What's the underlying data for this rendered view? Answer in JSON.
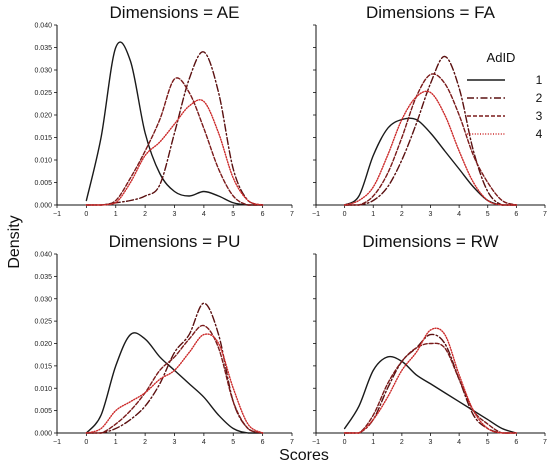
{
  "chart_data": {
    "type": "line",
    "subtype": "kde-density-facets",
    "xlabel": "Scores",
    "ylabel": "Density",
    "xlim": [
      -1,
      7
    ],
    "ylim": [
      0,
      0.04
    ],
    "x_ticks": [
      -1,
      0,
      1,
      2,
      3,
      4,
      5,
      6,
      7
    ],
    "x_tick_labels": [
      "−1",
      "0",
      "1",
      "2",
      "3",
      "4",
      "5",
      "6",
      "7"
    ],
    "y_ticks": [
      0,
      0.005,
      0.01,
      0.015,
      0.02,
      0.025,
      0.03,
      0.035,
      0.04
    ],
    "y_tick_labels": [
      "0.000",
      "0.005",
      "0.010",
      "0.015",
      "0.020",
      "0.025",
      "0.030",
      "0.035",
      "0.040"
    ],
    "grid": false,
    "legend": {
      "title": "AdID",
      "placement": "top-right",
      "entries": [
        {
          "label": "1",
          "color": "#1a1a1a",
          "dash": "solid"
        },
        {
          "label": "2",
          "color": "#5a1010",
          "dash": "dashdot"
        },
        {
          "label": "3",
          "color": "#7a1a1a",
          "dash": "dashed"
        },
        {
          "label": "4",
          "color": "#cc2a2a",
          "dash": "dotted"
        }
      ]
    },
    "x": [
      0,
      0.5,
      1,
      1.5,
      2,
      2.5,
      3,
      3.5,
      4,
      4.5,
      5,
      5.5,
      6
    ],
    "panels": [
      {
        "title": "Dimensions = AE",
        "series": [
          {
            "name": "1",
            "values": [
              0.001,
              0.015,
              0.035,
              0.032,
              0.016,
              0.007,
              0.003,
              0.002,
              0.003,
              0.002,
              0.0005,
              0,
              0
            ]
          },
          {
            "name": "2",
            "values": [
              0,
              0,
              0.0005,
              0.001,
              0.002,
              0.0045,
              0.016,
              0.028,
              0.034,
              0.025,
              0.008,
              0.001,
              0
            ]
          },
          {
            "name": "3",
            "values": [
              0,
              0,
              0.001,
              0.006,
              0.012,
              0.019,
              0.028,
              0.025,
              0.017,
              0.008,
              0.002,
              0,
              0
            ]
          },
          {
            "name": "4",
            "values": [
              0,
              0,
              0.0005,
              0.005,
              0.011,
              0.014,
              0.018,
              0.022,
              0.023,
              0.016,
              0.006,
              0.001,
              0
            ]
          }
        ]
      },
      {
        "title": "Dimensions = FA",
        "series": [
          {
            "name": "1",
            "values": [
              0,
              0.002,
              0.011,
              0.017,
              0.019,
              0.019,
              0.016,
              0.012,
              0.008,
              0.004,
              0.001,
              0,
              0
            ]
          },
          {
            "name": "2",
            "values": [
              0,
              0,
              0.001,
              0.004,
              0.01,
              0.018,
              0.027,
              0.033,
              0.026,
              0.012,
              0.003,
              0,
              0
            ]
          },
          {
            "name": "3",
            "values": [
              0,
              0,
              0.002,
              0.007,
              0.015,
              0.024,
              0.029,
              0.027,
              0.02,
              0.011,
              0.005,
              0.001,
              0
            ]
          },
          {
            "name": "4",
            "values": [
              0,
              0.001,
              0.004,
              0.011,
              0.019,
              0.024,
              0.025,
              0.02,
              0.012,
              0.005,
              0.001,
              0,
              0
            ]
          }
        ]
      },
      {
        "title": "Dimensions = PU",
        "series": [
          {
            "name": "1",
            "values": [
              0,
              0.004,
              0.015,
              0.022,
              0.021,
              0.017,
              0.014,
              0.011,
              0.008,
              0.004,
              0.001,
              0,
              0
            ]
          },
          {
            "name": "2",
            "values": [
              0,
              0,
              0.001,
              0.003,
              0.006,
              0.011,
              0.018,
              0.022,
              0.029,
              0.022,
              0.007,
              0.001,
              0
            ]
          },
          {
            "name": "3",
            "values": [
              0,
              0,
              0.002,
              0.005,
              0.009,
              0.014,
              0.017,
              0.021,
              0.024,
              0.019,
              0.007,
              0.001,
              0
            ]
          },
          {
            "name": "4",
            "values": [
              0,
              0.001,
              0.005,
              0.007,
              0.009,
              0.012,
              0.014,
              0.018,
              0.022,
              0.02,
              0.01,
              0.002,
              0
            ]
          }
        ]
      },
      {
        "title": "Dimensions = RW",
        "series": [
          {
            "name": "1",
            "values": [
              0.001,
              0.006,
              0.014,
              0.017,
              0.016,
              0.013,
              0.011,
              0.009,
              0.007,
              0.005,
              0.003,
              0.001,
              0
            ]
          },
          {
            "name": "2",
            "values": [
              0,
              0,
              0.003,
              0.01,
              0.016,
              0.019,
              0.022,
              0.02,
              0.012,
              0.004,
              0.001,
              0,
              0
            ]
          },
          {
            "name": "3",
            "values": [
              0,
              0,
              0.004,
              0.011,
              0.016,
              0.019,
              0.02,
              0.019,
              0.012,
              0.005,
              0.002,
              0,
              0
            ]
          },
          {
            "name": "4",
            "values": [
              0,
              0,
              0.003,
              0.008,
              0.014,
              0.018,
              0.023,
              0.022,
              0.013,
              0.005,
              0.001,
              0,
              0
            ]
          }
        ]
      }
    ]
  }
}
